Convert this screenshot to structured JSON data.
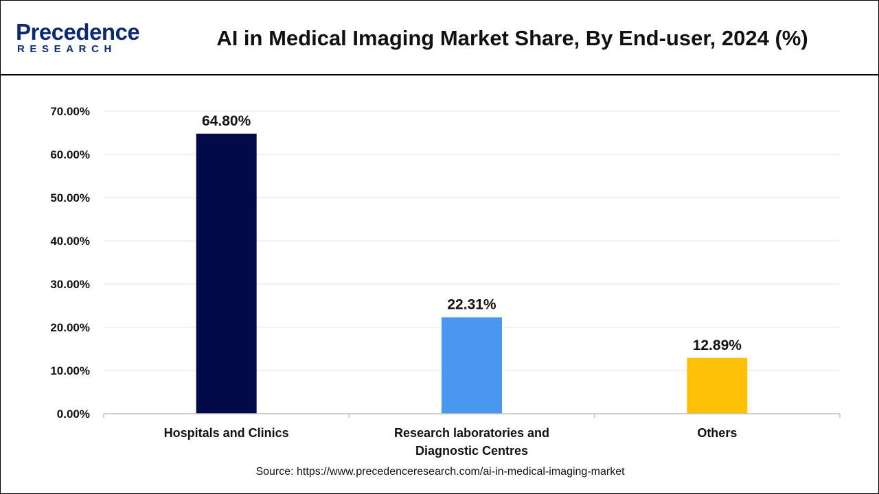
{
  "header": {
    "logo_main": "Precedence",
    "logo_sub": "RESEARCH",
    "title": "AI in Medical Imaging Market Share, By End-user, 2024 (%)"
  },
  "colors": {
    "brand": "#0b2a6f",
    "grid": "#e3e3e3",
    "axis": "#bfbfbf"
  },
  "chart_data": {
    "type": "bar",
    "title": "AI in Medical Imaging Market Share, By End-user, 2024 (%)",
    "xlabel": "",
    "ylabel": "",
    "ylim": [
      0,
      70
    ],
    "yticks": [
      0,
      10,
      20,
      30,
      40,
      50,
      60,
      70
    ],
    "ytick_labels": [
      "0.00%",
      "10.00%",
      "20.00%",
      "30.00%",
      "40.00%",
      "50.00%",
      "60.00%",
      "70.00%"
    ],
    "grid": true,
    "legend": "none",
    "categories": [
      [
        "Hospitals and Clinics"
      ],
      [
        "Research laboratories and",
        "Diagnostic Centres"
      ],
      [
        "Others"
      ]
    ],
    "values": [
      64.8,
      22.31,
      12.89
    ],
    "value_labels": [
      "64.80%",
      "22.31%",
      "12.89%"
    ],
    "bar_colors": [
      "#020a4a",
      "#4a97f0",
      "#ffc107"
    ]
  },
  "footer": {
    "source": "Source: https://www.precedenceresearch.com/ai-in-medical-imaging-market"
  }
}
